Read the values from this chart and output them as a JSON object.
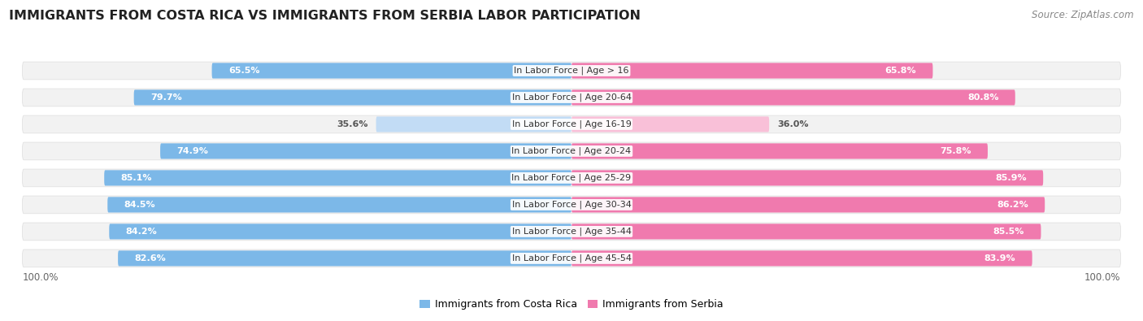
{
  "title": "IMMIGRANTS FROM COSTA RICA VS IMMIGRANTS FROM SERBIA LABOR PARTICIPATION",
  "source": "Source: ZipAtlas.com",
  "categories": [
    "In Labor Force | Age > 16",
    "In Labor Force | Age 20-64",
    "In Labor Force | Age 16-19",
    "In Labor Force | Age 20-24",
    "In Labor Force | Age 25-29",
    "In Labor Force | Age 30-34",
    "In Labor Force | Age 35-44",
    "In Labor Force | Age 45-54"
  ],
  "costa_rica_values": [
    65.5,
    79.7,
    35.6,
    74.9,
    85.1,
    84.5,
    84.2,
    82.6
  ],
  "serbia_values": [
    65.8,
    80.8,
    36.0,
    75.8,
    85.9,
    86.2,
    85.5,
    83.9
  ],
  "costa_rica_color": "#7CB8E8",
  "costa_rica_color_light": "#C2DCF5",
  "serbia_color": "#F07AAE",
  "serbia_color_light": "#F9C0D8",
  "row_bg_color": "#EFEFEF",
  "row_bg_color_alt": "#F7F7F7",
  "max_value": 100.0,
  "legend_costa_rica": "Immigrants from Costa Rica",
  "legend_serbia": "Immigrants from Serbia",
  "title_fontsize": 11.5,
  "label_fontsize": 8.0,
  "value_fontsize": 8.0,
  "legend_fontsize": 9,
  "footer_fontsize": 8.5,
  "source_fontsize": 8.5
}
